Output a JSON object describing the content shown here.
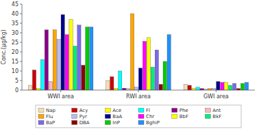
{
  "chart_data": {
    "type": "bar",
    "categories": [
      "WWI area",
      "RWI area",
      "GWI area"
    ],
    "series": [
      {
        "name": "Nap",
        "color": "#F5DEB3",
        "values": [
          2.5,
          5.0,
          3.0
        ]
      },
      {
        "name": "Acy",
        "color": "#CC0000",
        "values": [
          10.5,
          7.0,
          2.5
        ]
      },
      {
        "name": "Ace",
        "color": "#FFFF00",
        "values": [
          1.0,
          1.0,
          1.0
        ]
      },
      {
        "name": "Fl",
        "color": "#00FFFF",
        "values": [
          16.0,
          10.0,
          1.5
        ]
      },
      {
        "name": "Phe",
        "color": "#8B008B",
        "values": [
          31.5,
          1.0,
          0.8
        ]
      },
      {
        "name": "Ant",
        "color": "#FFB6C1",
        "values": [
          4.5,
          0.8,
          0.5
        ]
      },
      {
        "name": "Flu",
        "color": "#FFA500",
        "values": [
          31.5,
          40.0,
          0.8
        ]
      },
      {
        "name": "Pyr",
        "color": "#BBBBEE",
        "values": [
          26.5,
          1.5,
          0.8
        ]
      },
      {
        "name": "BaA",
        "color": "#00008B",
        "values": [
          39.5,
          11.5,
          4.5
        ]
      },
      {
        "name": "Chr",
        "color": "#FF00FF",
        "values": [
          29.0,
          25.5,
          4.0
        ]
      },
      {
        "name": "BbF",
        "color": "#FFFF00",
        "values": [
          37.0,
          27.5,
          4.0
        ]
      },
      {
        "name": "BkF",
        "color": "#00EE76",
        "values": [
          23.0,
          12.0,
          2.5
        ]
      },
      {
        "name": "BaP",
        "color": "#7B68EE",
        "values": [
          34.0,
          21.0,
          3.5
        ]
      },
      {
        "name": "DBA",
        "color": "#8B0000",
        "values": [
          13.0,
          3.0,
          0.8
        ]
      },
      {
        "name": "InP",
        "color": "#00CC00",
        "values": [
          33.0,
          15.0,
          3.5
        ]
      },
      {
        "name": "BghiP",
        "color": "#1E90FF",
        "values": [
          33.0,
          29.0,
          4.0
        ]
      }
    ],
    "y_label": "Conc.(μg/kg)",
    "ylim": [
      0,
      45
    ],
    "yticks": [
      0,
      5,
      10,
      15,
      20,
      25,
      30,
      35,
      40,
      45
    ],
    "legend": "bottom",
    "grid": false
  }
}
